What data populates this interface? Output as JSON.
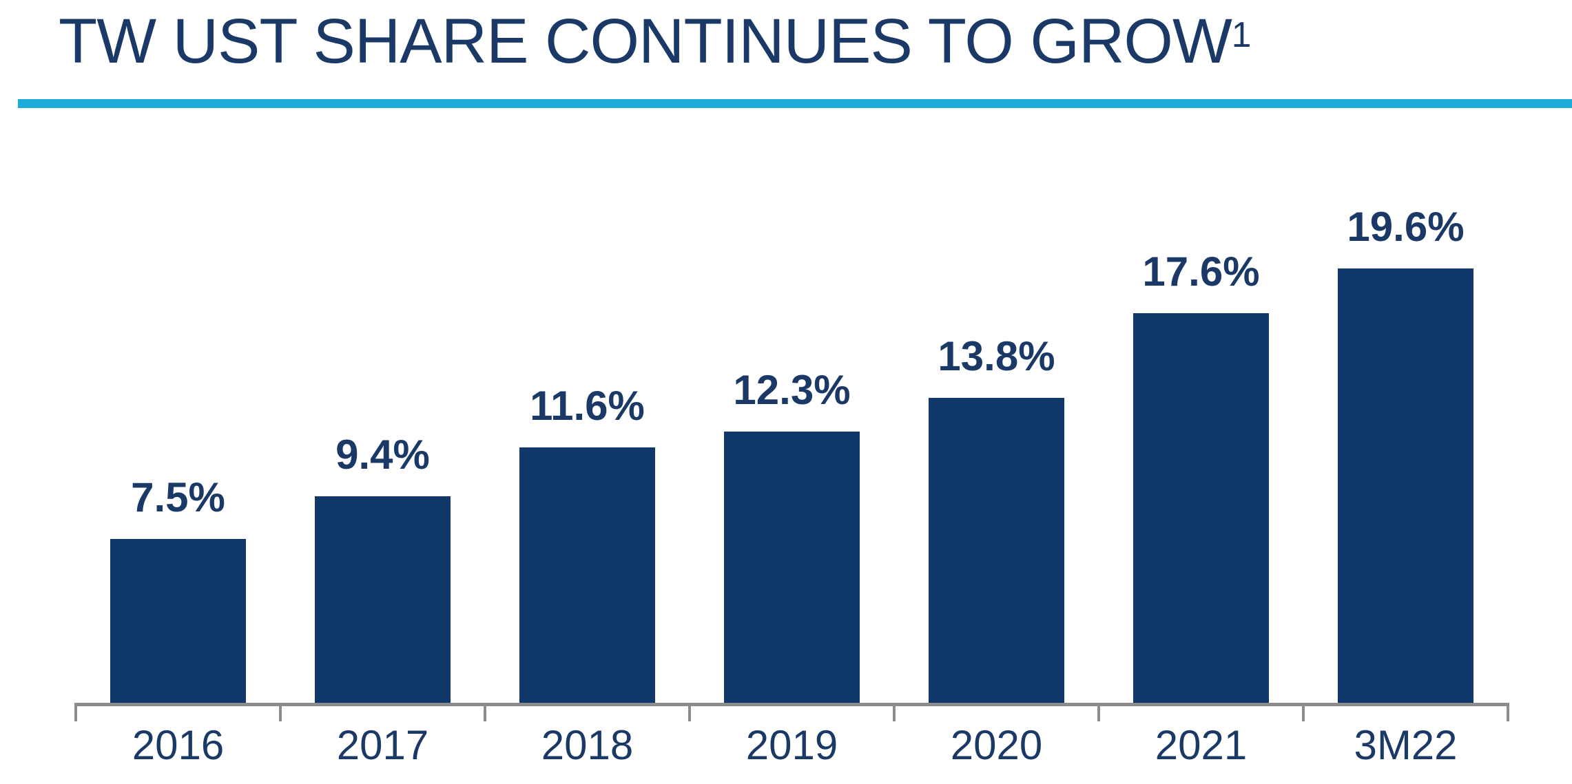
{
  "title": {
    "text": "TW UST SHARE CONTINUES TO GROW",
    "superscript": "1"
  },
  "colors": {
    "text_navy": "#1B3966",
    "bar_navy": "#11386B",
    "accent_cyan": "#1CADDC",
    "axis_gray": "#8C8C8C"
  },
  "chart_data": {
    "type": "bar",
    "title": "TW UST SHARE CONTINUES TO GROW",
    "categories": [
      "2016",
      "2017",
      "2018",
      "2019",
      "2020",
      "2021",
      "3M22"
    ],
    "values": [
      7.5,
      9.4,
      11.6,
      12.3,
      13.8,
      17.6,
      19.6
    ],
    "value_labels": [
      "7.5%",
      "9.4%",
      "11.6%",
      "12.3%",
      "13.8%",
      "17.6%",
      "19.6%"
    ],
    "xlabel": "",
    "ylabel": "",
    "ylim": [
      0,
      22
    ],
    "grid": false,
    "legend": false,
    "value_label_position": "above",
    "bar_color": "#11386B"
  }
}
